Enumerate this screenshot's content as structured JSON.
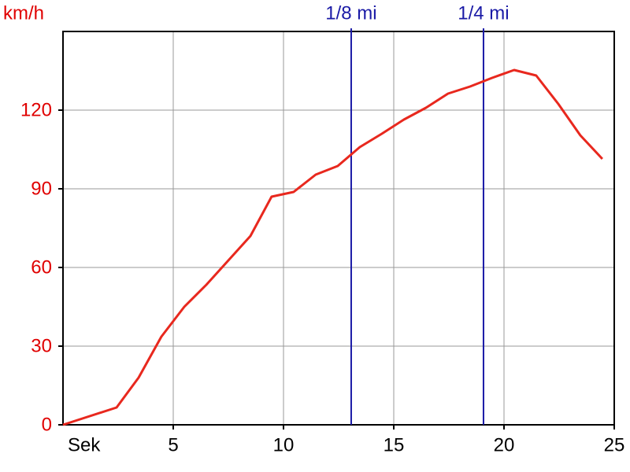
{
  "chart_data": {
    "type": "line",
    "y_label": "km/h",
    "x_label": "Sek",
    "x": [
      0,
      2.43,
      3.43,
      4.46,
      5.5,
      6.5,
      7.5,
      8.5,
      9.46,
      10.46,
      11.46,
      12.46,
      13.46,
      14.46,
      15.46,
      16.46,
      17.46,
      18.46,
      19.46,
      20.46,
      21.46,
      22.46,
      23.46,
      24.46
    ],
    "values": [
      0,
      6.6,
      18,
      33.6,
      45,
      53.4,
      62.7,
      72,
      87,
      88.8,
      95.4,
      98.7,
      105.9,
      111,
      116.4,
      120.9,
      126.3,
      129,
      132.3,
      135.3,
      133.2,
      122.4,
      110.4,
      101.4
    ],
    "color": "#e8281e",
    "markers": [
      {
        "label": "1/8 mi",
        "x": 13.07
      },
      {
        "label": "1/4 mi",
        "x": 19.07
      }
    ],
    "marker_color": "#1a1aa6",
    "xlim": [
      0,
      25
    ],
    "xticks": [
      5,
      10,
      15,
      20,
      25
    ],
    "ylim": [
      0,
      150
    ],
    "yticks": [
      0,
      30,
      60,
      90,
      120
    ],
    "grid": true
  }
}
